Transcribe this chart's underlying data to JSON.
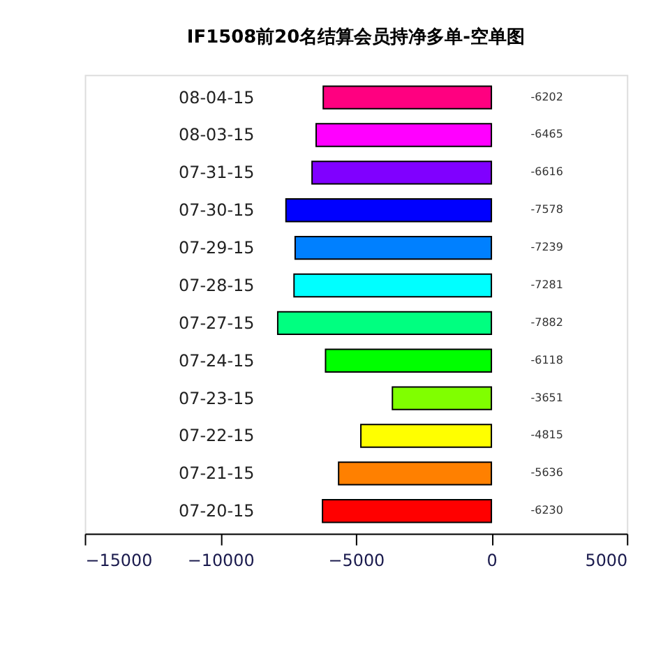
{
  "chart_data": {
    "type": "bar",
    "orientation": "horizontal",
    "title": "IF1508前20名结算会员持净多单-空单图",
    "categories": [
      "08-04-15",
      "08-03-15",
      "07-31-15",
      "07-30-15",
      "07-29-15",
      "07-28-15",
      "07-27-15",
      "07-24-15",
      "07-23-15",
      "07-22-15",
      "07-21-15",
      "07-20-15"
    ],
    "values": [
      -6202,
      -6465,
      -6616,
      -7578,
      -7239,
      -7281,
      -7882,
      -6118,
      -3651,
      -4815,
      -5636,
      -6230
    ],
    "colors": [
      "#ff0080",
      "#ff00ff",
      "#8000ff",
      "#0000ff",
      "#0080ff",
      "#00ffff",
      "#00ff80",
      "#00ff00",
      "#80ff00",
      "#ffff00",
      "#ff8000",
      "#ff0000"
    ],
    "xlim": [
      -15000,
      5000
    ],
    "xticks": [
      -15000,
      -10000,
      -5000,
      0,
      5000
    ],
    "data_labels": true,
    "grid": false,
    "legend": false
  }
}
